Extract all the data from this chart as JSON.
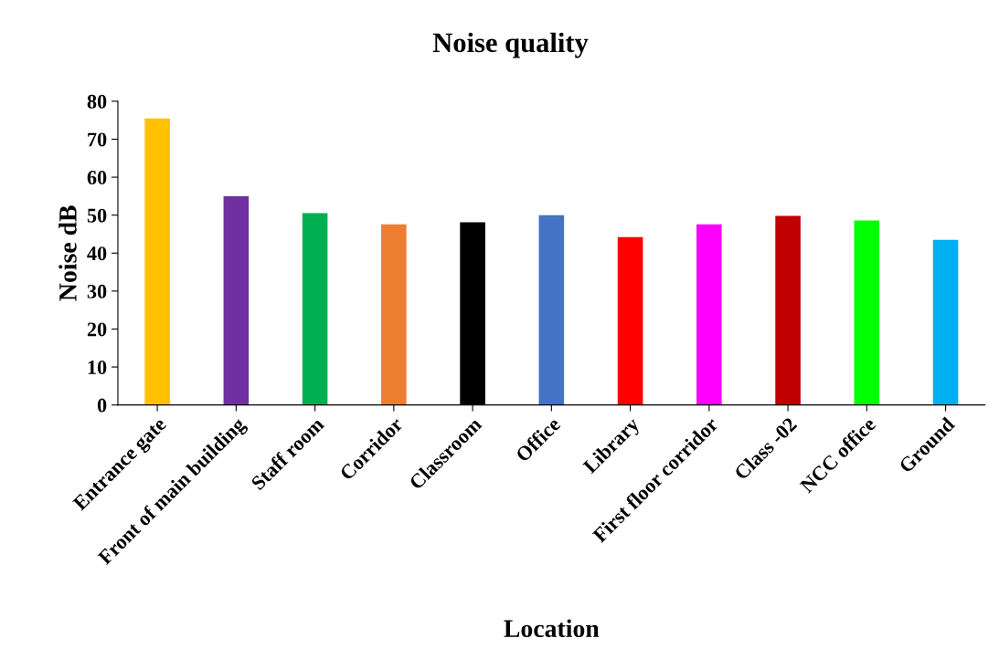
{
  "chart_data": {
    "type": "bar",
    "title": "Noise quality",
    "xlabel": "Location",
    "ylabel": "Noise dB",
    "categories": [
      "Entrance gate",
      "Front of main building",
      "Staff room",
      "Corridor",
      "Classroom",
      "Office",
      "Library",
      "First floor corridor",
      "Class -02",
      "NCC office",
      "Ground"
    ],
    "values": [
      75.5,
      55.0,
      50.5,
      47.6,
      48.1,
      50.0,
      44.2,
      47.6,
      49.8,
      48.6,
      43.5
    ],
    "colors": [
      "#ffc000",
      "#7030a0",
      "#00b050",
      "#ed7d31",
      "#000000",
      "#4472c4",
      "#ff0000",
      "#ff00ff",
      "#c00000",
      "#00ff00",
      "#00b0f0"
    ],
    "ylim": [
      0,
      80
    ],
    "yticks": [
      0,
      10,
      20,
      30,
      40,
      50,
      60,
      70,
      80
    ],
    "grid": false,
    "legend": false
  }
}
